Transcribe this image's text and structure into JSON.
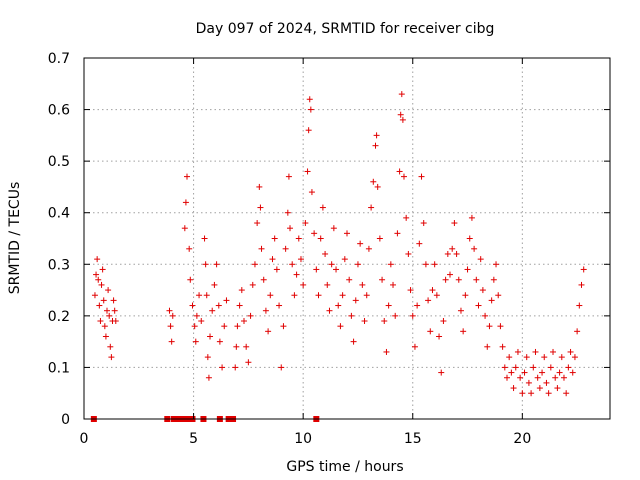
{
  "chart_data": {
    "type": "scatter",
    "title": "Day 097 of 2024, SRMTID for receiver cibg",
    "xlabel": "GPS time / hours",
    "ylabel": "SRMTID / TECUs",
    "xlim": [
      0,
      24
    ],
    "ylim": [
      0,
      0.7
    ],
    "x_ticks": [
      0,
      5,
      10,
      15,
      20
    ],
    "y_ticks": [
      0,
      0.1,
      0.2,
      0.3,
      0.4,
      0.5,
      0.6,
      0.7
    ],
    "x_tick_labels": [
      "0",
      "5",
      "10",
      "15",
      "20"
    ],
    "y_tick_labels": [
      "0",
      "0.1",
      "0.2",
      "0.3",
      "0.4",
      "0.5",
      "0.6",
      "0.7"
    ],
    "grid": true,
    "marker": "plus",
    "color": "#e00000",
    "series": [
      {
        "name": "SRMTID",
        "points": [
          [
            0.5,
            0.24
          ],
          [
            0.55,
            0.28
          ],
          [
            0.6,
            0.31
          ],
          [
            0.65,
            0.27
          ],
          [
            0.7,
            0.22
          ],
          [
            0.75,
            0.19
          ],
          [
            0.8,
            0.26
          ],
          [
            0.85,
            0.29
          ],
          [
            0.9,
            0.23
          ],
          [
            0.95,
            0.18
          ],
          [
            1.0,
            0.16
          ],
          [
            1.05,
            0.21
          ],
          [
            1.1,
            0.25
          ],
          [
            1.15,
            0.2
          ],
          [
            1.2,
            0.14
          ],
          [
            1.25,
            0.12
          ],
          [
            1.3,
            0.19
          ],
          [
            1.35,
            0.23
          ],
          [
            1.4,
            0.21
          ],
          [
            1.45,
            0.19
          ],
          [
            3.9,
            0.21
          ],
          [
            3.95,
            0.18
          ],
          [
            4.0,
            0.15
          ],
          [
            4.05,
            0.2
          ],
          [
            4.6,
            0.37
          ],
          [
            4.65,
            0.42
          ],
          [
            4.7,
            0.47
          ],
          [
            4.8,
            0.33
          ],
          [
            4.85,
            0.27
          ],
          [
            4.95,
            0.22
          ],
          [
            5.05,
            0.18
          ],
          [
            5.1,
            0.15
          ],
          [
            5.15,
            0.2
          ],
          [
            5.25,
            0.24
          ],
          [
            5.35,
            0.19
          ],
          [
            5.5,
            0.35
          ],
          [
            5.55,
            0.3
          ],
          [
            5.6,
            0.24
          ],
          [
            5.65,
            0.12
          ],
          [
            5.7,
            0.08
          ],
          [
            5.75,
            0.16
          ],
          [
            5.85,
            0.21
          ],
          [
            5.95,
            0.26
          ],
          [
            6.05,
            0.3
          ],
          [
            6.15,
            0.22
          ],
          [
            6.2,
            0.15
          ],
          [
            6.3,
            0.1
          ],
          [
            6.4,
            0.18
          ],
          [
            6.5,
            0.23
          ],
          [
            6.9,
            0.1
          ],
          [
            6.95,
            0.14
          ],
          [
            7.0,
            0.18
          ],
          [
            7.1,
            0.22
          ],
          [
            7.2,
            0.25
          ],
          [
            7.3,
            0.19
          ],
          [
            7.4,
            0.14
          ],
          [
            7.5,
            0.11
          ],
          [
            7.6,
            0.2
          ],
          [
            7.7,
            0.26
          ],
          [
            7.8,
            0.3
          ],
          [
            7.9,
            0.38
          ],
          [
            8.0,
            0.45
          ],
          [
            8.05,
            0.41
          ],
          [
            8.1,
            0.33
          ],
          [
            8.2,
            0.27
          ],
          [
            8.3,
            0.21
          ],
          [
            8.4,
            0.17
          ],
          [
            8.5,
            0.24
          ],
          [
            8.6,
            0.31
          ],
          [
            8.7,
            0.35
          ],
          [
            8.8,
            0.29
          ],
          [
            8.9,
            0.22
          ],
          [
            9.0,
            0.1
          ],
          [
            9.1,
            0.18
          ],
          [
            9.2,
            0.33
          ],
          [
            9.3,
            0.4
          ],
          [
            9.35,
            0.47
          ],
          [
            9.4,
            0.37
          ],
          [
            9.5,
            0.3
          ],
          [
            9.6,
            0.24
          ],
          [
            9.7,
            0.28
          ],
          [
            9.8,
            0.35
          ],
          [
            9.9,
            0.31
          ],
          [
            10.0,
            0.26
          ],
          [
            10.1,
            0.38
          ],
          [
            10.2,
            0.48
          ],
          [
            10.25,
            0.56
          ],
          [
            10.3,
            0.62
          ],
          [
            10.35,
            0.6
          ],
          [
            10.4,
            0.44
          ],
          [
            10.5,
            0.36
          ],
          [
            10.6,
            0.29
          ],
          [
            10.7,
            0.24
          ],
          [
            10.8,
            0.35
          ],
          [
            10.9,
            0.41
          ],
          [
            11.0,
            0.32
          ],
          [
            11.1,
            0.26
          ],
          [
            11.2,
            0.21
          ],
          [
            11.3,
            0.3
          ],
          [
            11.4,
            0.37
          ],
          [
            11.5,
            0.29
          ],
          [
            11.6,
            0.22
          ],
          [
            11.7,
            0.18
          ],
          [
            11.8,
            0.24
          ],
          [
            11.9,
            0.31
          ],
          [
            12.0,
            0.36
          ],
          [
            12.1,
            0.27
          ],
          [
            12.2,
            0.2
          ],
          [
            12.3,
            0.15
          ],
          [
            12.4,
            0.23
          ],
          [
            12.5,
            0.3
          ],
          [
            12.6,
            0.34
          ],
          [
            12.7,
            0.26
          ],
          [
            12.8,
            0.19
          ],
          [
            12.9,
            0.24
          ],
          [
            13.0,
            0.33
          ],
          [
            13.1,
            0.41
          ],
          [
            13.2,
            0.46
          ],
          [
            13.3,
            0.53
          ],
          [
            13.35,
            0.55
          ],
          [
            13.4,
            0.45
          ],
          [
            13.5,
            0.35
          ],
          [
            13.6,
            0.27
          ],
          [
            13.7,
            0.19
          ],
          [
            13.8,
            0.13
          ],
          [
            13.9,
            0.22
          ],
          [
            14.0,
            0.3
          ],
          [
            14.1,
            0.26
          ],
          [
            14.2,
            0.2
          ],
          [
            14.3,
            0.36
          ],
          [
            14.4,
            0.48
          ],
          [
            14.45,
            0.59
          ],
          [
            14.5,
            0.63
          ],
          [
            14.55,
            0.58
          ],
          [
            14.6,
            0.47
          ],
          [
            14.7,
            0.39
          ],
          [
            14.8,
            0.32
          ],
          [
            14.9,
            0.25
          ],
          [
            15.0,
            0.2
          ],
          [
            15.1,
            0.14
          ],
          [
            15.2,
            0.22
          ],
          [
            15.3,
            0.34
          ],
          [
            15.4,
            0.47
          ],
          [
            15.5,
            0.38
          ],
          [
            15.6,
            0.3
          ],
          [
            15.7,
            0.23
          ],
          [
            15.8,
            0.17
          ],
          [
            15.9,
            0.25
          ],
          [
            16.0,
            0.3
          ],
          [
            16.1,
            0.24
          ],
          [
            16.2,
            0.16
          ],
          [
            16.3,
            0.09
          ],
          [
            16.4,
            0.19
          ],
          [
            16.5,
            0.27
          ],
          [
            16.6,
            0.32
          ],
          [
            16.7,
            0.28
          ],
          [
            16.8,
            0.33
          ],
          [
            16.9,
            0.38
          ],
          [
            17.0,
            0.32
          ],
          [
            17.1,
            0.27
          ],
          [
            17.2,
            0.21
          ],
          [
            17.3,
            0.17
          ],
          [
            17.4,
            0.24
          ],
          [
            17.5,
            0.29
          ],
          [
            17.6,
            0.35
          ],
          [
            17.7,
            0.39
          ],
          [
            17.8,
            0.33
          ],
          [
            17.9,
            0.27
          ],
          [
            18.0,
            0.22
          ],
          [
            18.1,
            0.31
          ],
          [
            18.2,
            0.25
          ],
          [
            18.3,
            0.2
          ],
          [
            18.4,
            0.14
          ],
          [
            18.5,
            0.18
          ],
          [
            18.6,
            0.23
          ],
          [
            18.7,
            0.27
          ],
          [
            18.8,
            0.3
          ],
          [
            18.9,
            0.24
          ],
          [
            19.0,
            0.18
          ],
          [
            19.1,
            0.14
          ],
          [
            19.2,
            0.1
          ],
          [
            19.3,
            0.08
          ],
          [
            19.4,
            0.12
          ],
          [
            19.5,
            0.09
          ],
          [
            19.6,
            0.06
          ],
          [
            19.7,
            0.1
          ],
          [
            19.8,
            0.13
          ],
          [
            19.9,
            0.08
          ],
          [
            20.0,
            0.05
          ],
          [
            20.1,
            0.09
          ],
          [
            20.2,
            0.12
          ],
          [
            20.3,
            0.07
          ],
          [
            20.4,
            0.05
          ],
          [
            20.5,
            0.1
          ],
          [
            20.6,
            0.13
          ],
          [
            20.7,
            0.08
          ],
          [
            20.8,
            0.06
          ],
          [
            20.9,
            0.09
          ],
          [
            21.0,
            0.12
          ],
          [
            21.1,
            0.07
          ],
          [
            21.2,
            0.05
          ],
          [
            21.3,
            0.1
          ],
          [
            21.4,
            0.13
          ],
          [
            21.5,
            0.08
          ],
          [
            21.6,
            0.06
          ],
          [
            21.7,
            0.09
          ],
          [
            21.8,
            0.12
          ],
          [
            21.9,
            0.08
          ],
          [
            22.0,
            0.05
          ],
          [
            22.1,
            0.1
          ],
          [
            22.2,
            0.13
          ],
          [
            22.3,
            0.09
          ],
          [
            22.4,
            0.12
          ],
          [
            22.5,
            0.17
          ],
          [
            22.6,
            0.22
          ],
          [
            22.7,
            0.26
          ],
          [
            22.8,
            0.29
          ]
        ]
      }
    ],
    "zero_markers_x": [
      0.45,
      3.8,
      4.1,
      4.25,
      4.5,
      4.65,
      4.8,
      4.95,
      5.45,
      6.2,
      6.6,
      6.8,
      10.6
    ]
  }
}
